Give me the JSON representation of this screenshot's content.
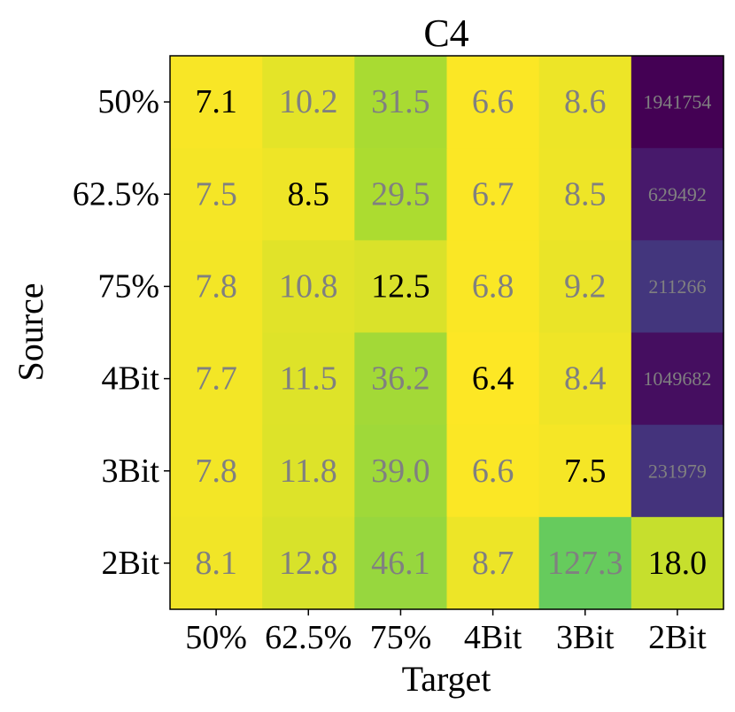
{
  "chart_data": {
    "type": "heatmap",
    "title": "C4",
    "xlabel": "Target",
    "ylabel": "Source",
    "x_categories": [
      "50%",
      "62.5%",
      "75%",
      "4Bit",
      "3Bit",
      "2Bit"
    ],
    "y_categories": [
      "50%",
      "62.5%",
      "75%",
      "4Bit",
      "3Bit",
      "2Bit"
    ],
    "values": [
      [
        7.1,
        10.2,
        31.5,
        6.6,
        8.6,
        1941754
      ],
      [
        7.5,
        8.5,
        29.5,
        6.7,
        8.5,
        629492
      ],
      [
        7.8,
        10.8,
        12.5,
        6.8,
        9.2,
        211266
      ],
      [
        7.7,
        11.5,
        36.2,
        6.4,
        8.4,
        1049682
      ],
      [
        7.8,
        11.8,
        39.0,
        6.6,
        7.5,
        231979
      ],
      [
        8.1,
        12.8,
        46.1,
        8.7,
        127.3,
        18.0
      ]
    ],
    "cell_labels": [
      [
        "7.1",
        "10.2",
        "31.5",
        "6.6",
        "8.6",
        "1941754"
      ],
      [
        "7.5",
        "8.5",
        "29.5",
        "6.7",
        "8.5",
        "629492"
      ],
      [
        "7.8",
        "10.8",
        "12.5",
        "6.8",
        "9.2",
        "211266"
      ],
      [
        "7.7",
        "11.5",
        "36.2",
        "6.4",
        "8.4",
        "1049682"
      ],
      [
        "7.8",
        "11.8",
        "39.0",
        "6.6",
        "7.5",
        "231979"
      ],
      [
        "8.1",
        "12.8",
        "46.1",
        "8.7",
        "127.3",
        "18.0"
      ]
    ],
    "colormap": "viridis (log scale)",
    "diagonal_label_color": "#000000",
    "offdiagonal_label_color": "#808080",
    "grid": false
  }
}
